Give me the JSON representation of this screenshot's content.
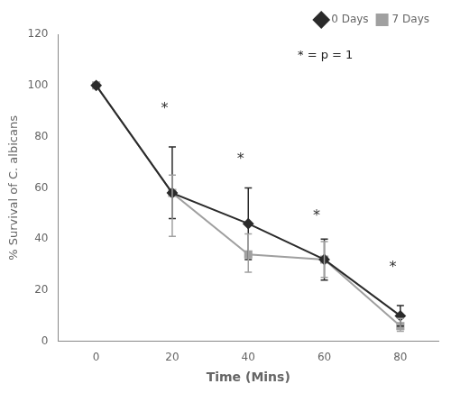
{
  "chart_data": {
    "type": "line",
    "x": [
      0,
      20,
      40,
      60,
      80
    ],
    "series": [
      {
        "name": "0 Days",
        "color": "#2b2b2b",
        "marker": "diamond",
        "line_style": "solid",
        "values": [
          100,
          58,
          46,
          32,
          10
        ],
        "error_lower": [
          0,
          10,
          14,
          8,
          4
        ],
        "error_upper": [
          0,
          18,
          14,
          8,
          4
        ]
      },
      {
        "name": "7 Days",
        "color": "#a0a0a0",
        "marker": "square",
        "line_style": "solid",
        "values": [
          100,
          58,
          34,
          32,
          6
        ],
        "error_lower": [
          0,
          17,
          7,
          7,
          2
        ],
        "error_upper": [
          0,
          7,
          8,
          7,
          3
        ]
      }
    ],
    "xlabel": "Time (Mins)",
    "ylabel": "% Survival of C. albicans",
    "xlim": [
      -10,
      90
    ],
    "xticks": [
      0,
      20,
      40,
      60,
      80
    ],
    "ylim": [
      0,
      120
    ],
    "yticks": [
      0,
      20,
      40,
      60,
      80,
      100,
      120
    ],
    "grid": false,
    "legend": "upper right",
    "annotations": [
      {
        "text": "* = p = 1"
      },
      {
        "text": "*",
        "x": 18,
        "y": 91
      },
      {
        "text": "*",
        "x": 38,
        "y": 71
      },
      {
        "text": "*",
        "x": 58,
        "y": 49
      },
      {
        "text": "*",
        "x": 78,
        "y": 29
      }
    ]
  }
}
